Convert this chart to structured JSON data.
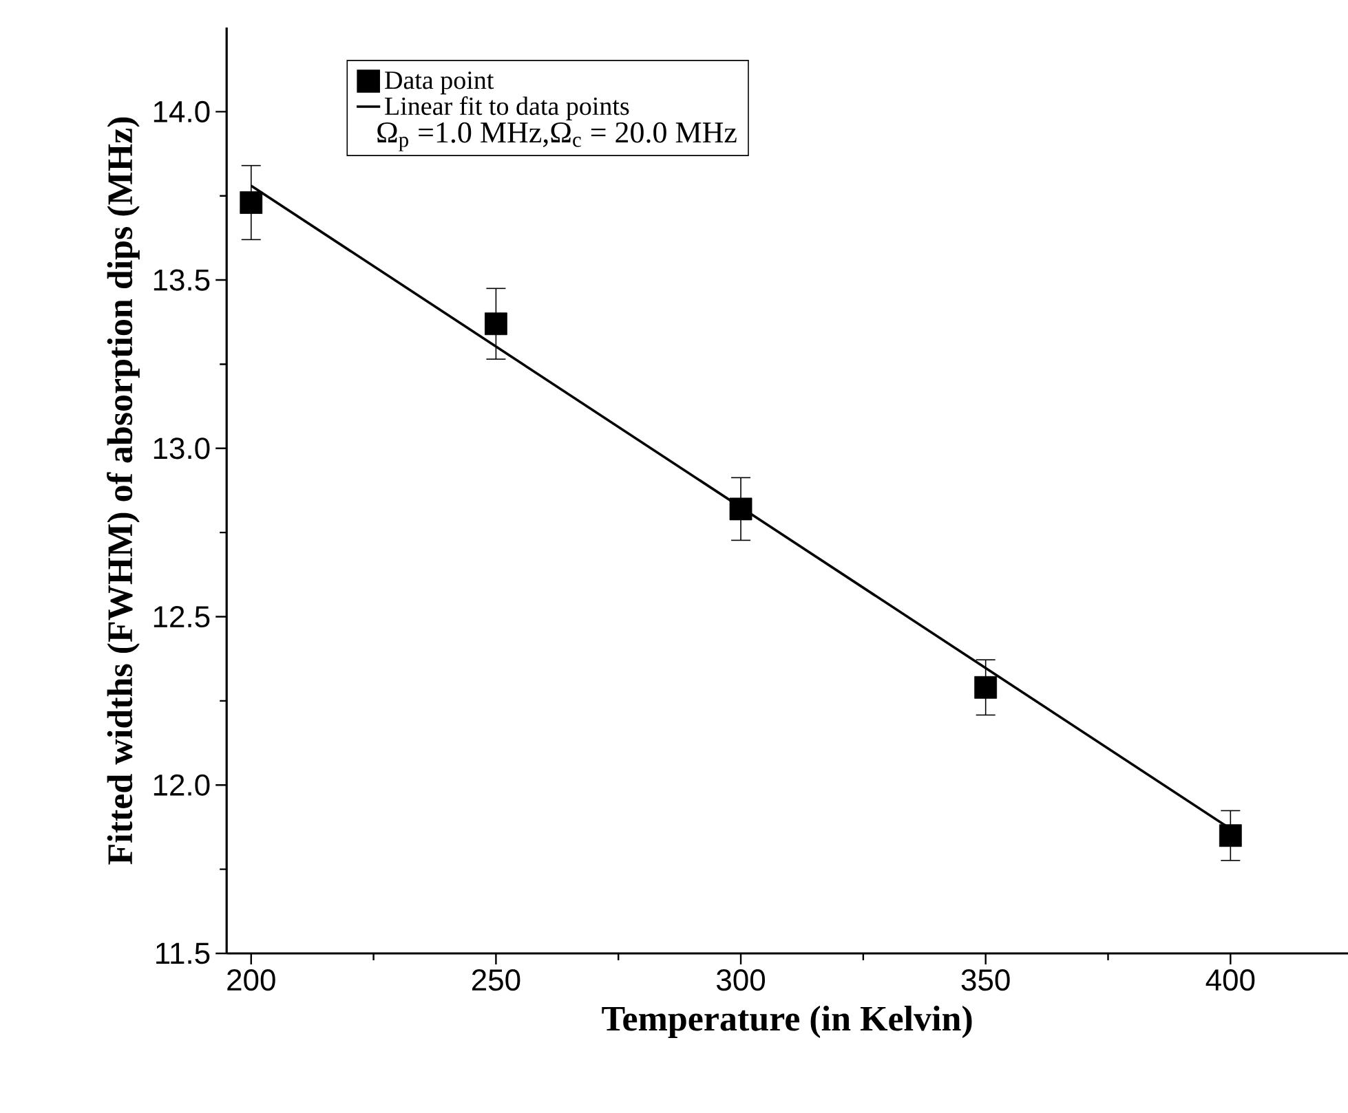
{
  "chart_data": {
    "type": "scatter",
    "xlabel": "Temperature (in Kelvin)",
    "ylabel": "Fitted widths (FWHM) of absorption dips (MHz)",
    "annotations": [
      "Ω$_{p}$ =1.0 MHz,Ω$_{c}$ = 20.0 MHz"
    ],
    "x": [
      200,
      250,
      300,
      350,
      400
    ],
    "series": [
      {
        "name": "Data point",
        "color": "#000000",
        "marker": "square",
        "values": [
          13.73,
          13.37,
          12.82,
          12.29,
          11.85
        ],
        "errors": [
          0.11,
          0.105,
          0.093,
          0.082,
          0.074
        ]
      },
      {
        "name": "Linear fit to data points",
        "type": "line",
        "color": "#000000",
        "marker": "none",
        "line_style": "solid",
        "x": [
          200,
          400
        ],
        "values": [
          13.78,
          11.87
        ]
      }
    ],
    "xlim": [
      195,
      424
    ],
    "ylim": [
      11.5,
      14.25
    ],
    "xticks": [
      200,
      250,
      300,
      350,
      400
    ],
    "yticks": [
      11.5,
      {
        "value": 12.0,
        "label": "12.0"
      },
      12.5,
      {
        "value": 13.0,
        "label": "13.0"
      },
      13.5,
      {
        "value": 14.0,
        "label": "14.0"
      }
    ],
    "grid": false,
    "legend": "top left"
  }
}
